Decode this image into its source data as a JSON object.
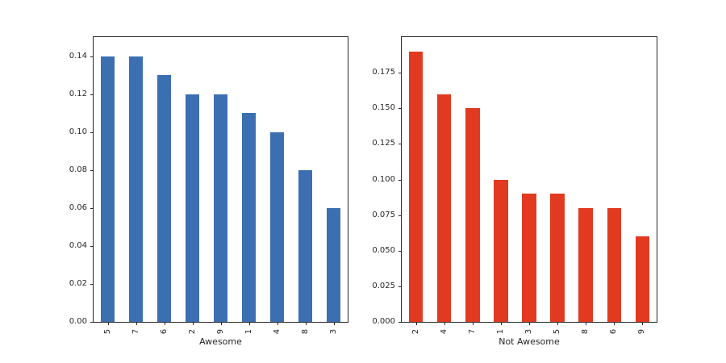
{
  "figure": {
    "background": "#ffffff"
  },
  "chart_data": [
    {
      "type": "bar",
      "title": "",
      "xlabel": "Awesome",
      "ylabel": "",
      "categories": [
        "5",
        "7",
        "6",
        "2",
        "9",
        "1",
        "4",
        "8",
        "3"
      ],
      "values": [
        0.14,
        0.14,
        0.13,
        0.12,
        0.12,
        0.11,
        0.1,
        0.08,
        0.06
      ],
      "bar_color": "#3c6fb1",
      "ylim": [
        0,
        0.15
      ],
      "yticks": [
        "0.00",
        "0.02",
        "0.04",
        "0.06",
        "0.08",
        "0.10",
        "0.12",
        "0.14"
      ],
      "bar_width_fraction": 0.5,
      "grid": false,
      "legend": false
    },
    {
      "type": "bar",
      "title": "",
      "xlabel": "Not Awesome",
      "ylabel": "",
      "categories": [
        "2",
        "4",
        "7",
        "1",
        "3",
        "5",
        "8",
        "6",
        "9"
      ],
      "values": [
        0.19,
        0.16,
        0.15,
        0.1,
        0.09,
        0.09,
        0.08,
        0.08,
        0.06
      ],
      "bar_color": "#e13a20",
      "ylim": [
        0,
        0.2
      ],
      "yticks": [
        "0.000",
        "0.025",
        "0.050",
        "0.075",
        "0.100",
        "0.125",
        "0.150",
        "0.175"
      ],
      "bar_width_fraction": 0.5,
      "grid": false,
      "legend": false
    }
  ]
}
